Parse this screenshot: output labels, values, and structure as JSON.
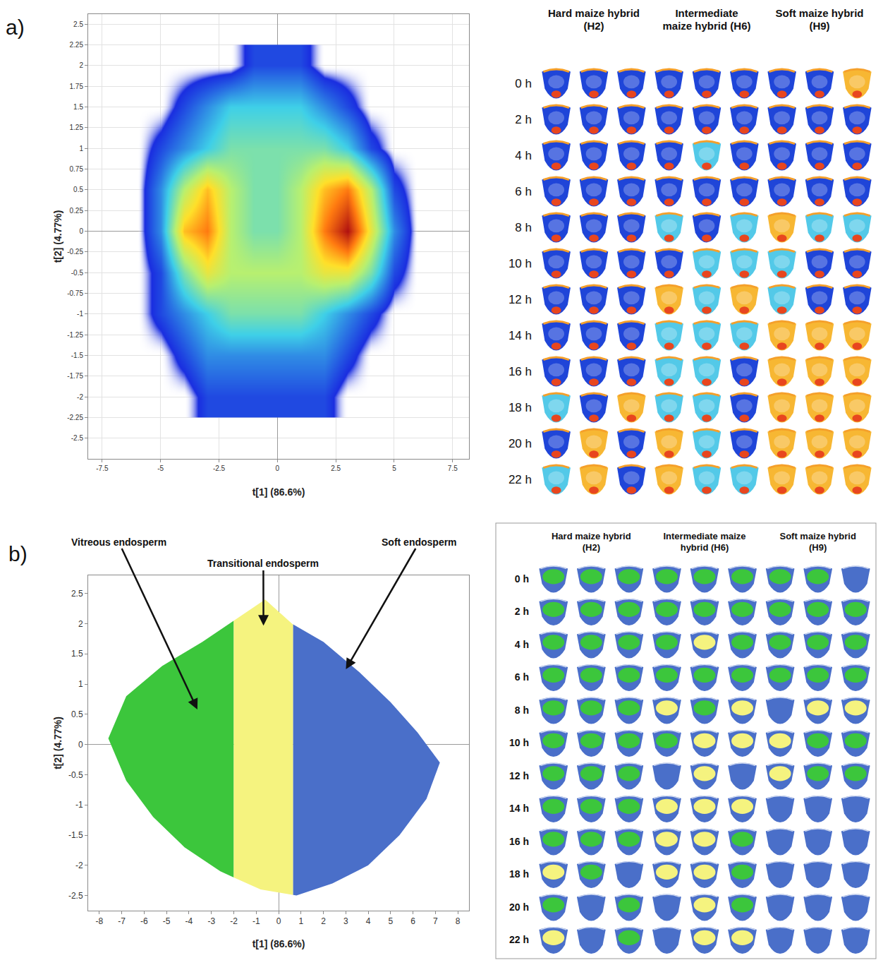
{
  "chart_data": [
    {
      "panel": "a)",
      "type": "density",
      "x_label": "t[1] (86.6%)",
      "y_label": "t[2] (4.77%)",
      "x": [
        -6,
        -5,
        -4,
        -3,
        -2,
        -1,
        0,
        1,
        2,
        3,
        4,
        5,
        6
      ],
      "y": [
        -2,
        -1.5,
        -1,
        -0.5,
        0,
        0.5,
        1,
        1.5,
        2
      ],
      "density": [
        [
          0,
          0,
          0,
          1,
          1,
          1,
          1,
          1,
          1,
          0,
          0,
          0,
          0
        ],
        [
          0,
          0,
          1,
          2,
          2,
          2,
          2,
          2,
          2,
          1,
          0,
          0,
          0
        ],
        [
          0,
          1,
          2,
          3,
          4,
          4,
          4,
          4,
          3,
          2,
          1,
          0,
          0
        ],
        [
          0,
          1,
          4,
          6,
          5,
          5,
          5,
          5,
          6,
          6,
          4,
          1,
          0
        ],
        [
          0,
          2,
          7,
          8,
          5,
          4,
          4,
          5,
          8,
          10,
          6,
          2,
          0
        ],
        [
          0,
          2,
          5,
          7,
          5,
          4,
          4,
          5,
          7,
          8,
          5,
          1,
          0
        ],
        [
          0,
          1,
          2,
          3,
          4,
          4,
          4,
          4,
          4,
          3,
          1,
          0,
          0
        ],
        [
          0,
          0,
          1,
          2,
          3,
          3,
          3,
          3,
          2,
          1,
          0,
          0,
          0
        ],
        [
          0,
          0,
          0,
          0,
          0,
          1,
          1,
          1,
          0,
          0,
          0,
          0,
          0
        ]
      ],
      "xlim": [
        -8.1,
        8.2
      ],
      "ylim": [
        -2.75,
        2.62
      ],
      "xticks": [
        -7.5,
        -5,
        -2.5,
        0,
        2.5,
        5,
        7.5
      ],
      "yticks": [
        -2.5,
        -2.25,
        -2,
        -1.75,
        -1.5,
        -1.25,
        -1,
        -0.75,
        -0.5,
        -0.25,
        0,
        0.25,
        0.5,
        0.75,
        1,
        1.25,
        1.5,
        1.75,
        2,
        2.25,
        2.5
      ],
      "grid": true
    },
    {
      "panel": "b)",
      "type": "regions",
      "x_label": "t[1] (86.6%)",
      "y_label": "t[2] (4.77%)",
      "outline": {
        "x": [
          -7.6,
          -6.8,
          -5.2,
          -3.4,
          -1.8,
          -0.6,
          0.6,
          2.0,
          3.6,
          5.0,
          6.2,
          7.2,
          6.6,
          5.4,
          4.0,
          2.4,
          0.8,
          -0.8,
          -2.6,
          -4.2,
          -5.6,
          -6.8
        ],
        "y": [
          0.1,
          0.8,
          1.3,
          1.7,
          2.1,
          2.4,
          2.0,
          1.7,
          1.2,
          0.7,
          0.2,
          -0.3,
          -0.9,
          -1.5,
          -2.0,
          -2.3,
          -2.5,
          -2.4,
          -2.1,
          -1.7,
          -1.2,
          -0.6
        ]
      },
      "boundaries": [
        -2,
        0.65
      ],
      "series": [
        {
          "name": "Vitreous endosperm",
          "color": "#3cc63c"
        },
        {
          "name": "Transitional endosperm",
          "color": "#f5f37f"
        },
        {
          "name": "Soft endosperm",
          "color": "#4a6fc9"
        }
      ],
      "xlim": [
        -8.5,
        8.5
      ],
      "ylim": [
        -2.75,
        2.8
      ],
      "xticks": [
        -8,
        -7,
        -6,
        -5,
        -4,
        -3,
        -2,
        -1,
        0,
        1,
        2,
        3,
        4,
        5,
        6,
        7,
        8
      ],
      "yticks": [
        -2.5,
        -2,
        -1.5,
        -1,
        -0.5,
        0,
        0.5,
        1,
        1.5,
        2,
        2.5
      ],
      "grid": false
    }
  ],
  "image_grids": [
    {
      "columns": [
        "Hard maize hybrid (H2)",
        "Intermediate maize hybrid (H6)",
        "Soft maize hybrid (H9)"
      ],
      "rows": [
        "0 h",
        "2 h",
        "4 h",
        "6 h",
        "8 h",
        "10 h",
        "12 h",
        "14 h",
        "16 h",
        "18 h",
        "20 h",
        "22 h"
      ],
      "colors": [
        "#1f45d8",
        "#53c9e8",
        "#f7b733"
      ],
      "kernels": [
        [
          0,
          0,
          0,
          0,
          0,
          0,
          0,
          0,
          2
        ],
        [
          0,
          0,
          0,
          0,
          0,
          0,
          0,
          0,
          0
        ],
        [
          0,
          0,
          0,
          0,
          1,
          0,
          0,
          0,
          0
        ],
        [
          0,
          0,
          0,
          0,
          0,
          0,
          0,
          0,
          0
        ],
        [
          0,
          0,
          0,
          1,
          0,
          1,
          2,
          1,
          1
        ],
        [
          0,
          0,
          0,
          0,
          1,
          1,
          1,
          0,
          0
        ],
        [
          0,
          0,
          0,
          2,
          1,
          2,
          1,
          0,
          0
        ],
        [
          0,
          0,
          0,
          1,
          1,
          1,
          2,
          2,
          2
        ],
        [
          0,
          0,
          0,
          1,
          1,
          0,
          2,
          2,
          2
        ],
        [
          1,
          0,
          2,
          1,
          1,
          0,
          2,
          2,
          2
        ],
        [
          0,
          2,
          0,
          2,
          1,
          0,
          2,
          2,
          2
        ],
        [
          1,
          2,
          0,
          2,
          1,
          1,
          2,
          2,
          2
        ]
      ]
    },
    {
      "columns": [
        "Hard maize hybrid (H2)",
        "Intermediate maize hybrid (H6)",
        "Soft maize hybrid (H9)"
      ],
      "rows": [
        "0 h",
        "2 h",
        "4 h",
        "6 h",
        "8 h",
        "10 h",
        "12 h",
        "14 h",
        "16 h",
        "18 h",
        "20 h",
        "22 h"
      ],
      "colors": [
        "#3cc63c",
        "#f5f37f",
        "#4a6fc9"
      ],
      "kernels": [
        [
          0,
          0,
          0,
          0,
          0,
          0,
          0,
          0,
          2
        ],
        [
          0,
          0,
          0,
          0,
          0,
          0,
          0,
          0,
          0
        ],
        [
          0,
          0,
          0,
          0,
          1,
          0,
          0,
          0,
          0
        ],
        [
          0,
          0,
          0,
          0,
          0,
          0,
          0,
          0,
          0
        ],
        [
          0,
          0,
          0,
          1,
          0,
          1,
          2,
          1,
          1
        ],
        [
          0,
          0,
          0,
          0,
          1,
          1,
          1,
          0,
          0
        ],
        [
          0,
          0,
          0,
          2,
          1,
          2,
          1,
          0,
          0
        ],
        [
          0,
          0,
          0,
          1,
          1,
          1,
          2,
          2,
          2
        ],
        [
          0,
          0,
          0,
          1,
          1,
          0,
          2,
          2,
          2
        ],
        [
          1,
          0,
          2,
          1,
          1,
          0,
          2,
          2,
          2
        ],
        [
          0,
          2,
          0,
          2,
          1,
          0,
          2,
          2,
          2
        ],
        [
          1,
          2,
          0,
          2,
          1,
          1,
          2,
          2,
          2
        ]
      ]
    }
  ]
}
